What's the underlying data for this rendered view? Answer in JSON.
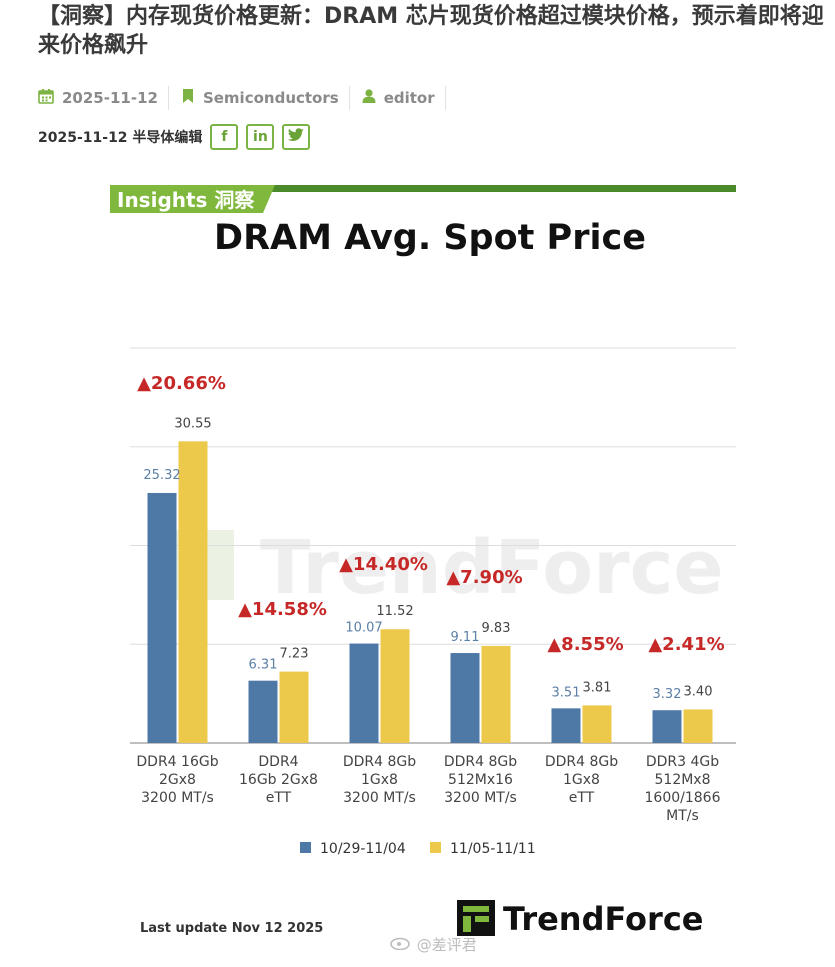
{
  "article": {
    "headline": "【洞察】内存现货价格更新：DRAM 芯片现货价格超过模块价格，预示着即将迎来价格飙升",
    "date": "2025-11-12",
    "category": "Semiconductors",
    "author": "editor",
    "byline": "2025-11-12 半导体编辑",
    "social": [
      "f",
      "in",
      "t"
    ]
  },
  "brand": {
    "insights_label": "Insights 洞察",
    "logo_text": "TrendForce",
    "watermark": "TrendForce",
    "handle": "@差评君",
    "last_update": "Last update Nov 12  2025"
  },
  "colors": {
    "series_a": "#4e79a7",
    "series_b": "#ecc94b",
    "accent_green": "#4a8a2a",
    "change_red": "#c62828",
    "meta_icon_green": "#7cb342"
  },
  "chart_data": {
    "type": "bar",
    "title": "DRAM Avg. Spot Price",
    "categories": [
      [
        "DDR4 16Gb",
        "2Gx8",
        "3200 MT/s"
      ],
      [
        "DDR4",
        "16Gb 2Gx8",
        "eTT"
      ],
      [
        "DDR4 8Gb",
        "1Gx8",
        "3200 MT/s"
      ],
      [
        "DDR4 8Gb",
        "512Mx16",
        "3200 MT/s"
      ],
      [
        "DDR4 8Gb",
        "1Gx8",
        "eTT"
      ],
      [
        "DDR3 4Gb",
        "512Mx8",
        "1600/1866",
        "MT/s"
      ]
    ],
    "series": [
      {
        "name": "10/29-11/04",
        "values": [
          25.32,
          6.31,
          10.07,
          9.11,
          3.51,
          3.32
        ],
        "labels": [
          "25.32",
          "6.31",
          "10.07",
          "9.11",
          "3.51",
          "3.32"
        ]
      },
      {
        "name": "11/05-11/11",
        "values": [
          30.55,
          7.23,
          11.52,
          9.83,
          3.81,
          3.4
        ],
        "labels": [
          "30.55",
          "7.23",
          "11.52",
          "9.83",
          "3.81",
          "3.40"
        ]
      }
    ],
    "changes": [
      "▲20.66%",
      "▲14.58%",
      "▲14.40%",
      "▲7.90%",
      "▲8.55%",
      "▲2.41%"
    ],
    "ylim": [
      0,
      40
    ],
    "grid": true,
    "legend_position": "bottom"
  }
}
